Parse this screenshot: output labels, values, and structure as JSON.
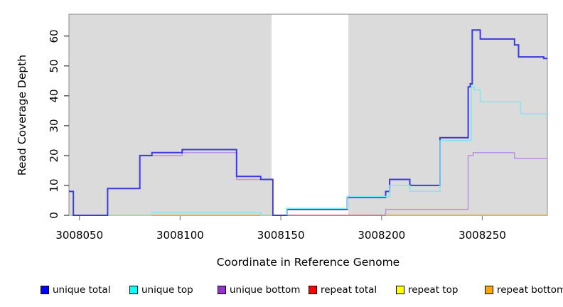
{
  "chart_data": {
    "type": "line",
    "subtype": "step-coverage-plot",
    "title": "",
    "xlabel": "Coordinate in Reference Genome",
    "ylabel": "Read Coverage Depth",
    "xlim": [
      3008044.8,
      3008282.3
    ],
    "ylim": [
      0,
      67.3
    ],
    "grid": false,
    "x_tick_values": [
      3008050,
      3008100,
      3008150,
      3008200,
      3008250
    ],
    "x_tick_labels": [
      "3008050",
      "3008100",
      "3008150",
      "3008200",
      "3008250"
    ],
    "y_tick_values": [
      0,
      10,
      20,
      30,
      40,
      50,
      60
    ],
    "y_tick_labels": [
      "0",
      "10",
      "20",
      "30",
      "40",
      "50",
      "60"
    ],
    "plot_bg_color": "#DBDBDB",
    "plot_border_color": "#9B9B9B",
    "x_tick_color": "#8a8a8a",
    "y_tick_color": "#444444",
    "highlight_region": {
      "x0": 3008145.4,
      "x1": 3008183.5,
      "color": "#FFFFFF"
    },
    "legend_position": "bottom",
    "legend": [
      {
        "label": "unique total",
        "color": "#0000FF"
      },
      {
        "label": "unique top",
        "color": "#00FFFF"
      },
      {
        "label": "unique bottom",
        "color": "#9932CC"
      },
      {
        "label": "repeat total",
        "color": "#FF0000"
      },
      {
        "label": "repeat top",
        "color": "#FFFF00"
      },
      {
        "label": "repeat bottom",
        "color": "#FFA500"
      }
    ],
    "series": [
      {
        "name": "repeat top",
        "plot_color": "#8FD98F",
        "width": 1.4,
        "parts": [
          [
            [
              3008044.8,
              0
            ],
            [
              3008150,
              0
            ]
          ]
        ]
      },
      {
        "name": "repeat total",
        "plot_color": "#D4547A",
        "width": 1.4,
        "parts": [
          [
            [
              3008146,
              0
            ],
            [
              3008202,
              0
            ]
          ]
        ]
      },
      {
        "name": "repeat bottom",
        "plot_color": "#FFA51E",
        "width": 1.7,
        "parts": [
          [
            [
              3008086,
              0
            ],
            [
              3008140,
              0
            ]
          ],
          [
            [
              3008202,
              0
            ],
            [
              3008282.3,
              0
            ]
          ]
        ]
      },
      {
        "name": "unique bottom",
        "plot_color": "#BD93DC",
        "width": 1.5,
        "parts": [
          [
            [
              3008086,
              20
            ],
            [
              3008101,
              20
            ],
            [
              3008101,
              21
            ],
            [
              3008128,
              21
            ],
            [
              3008128,
              12
            ],
            [
              3008140,
              12
            ]
          ],
          [
            [
              3008202,
              0
            ],
            [
              3008202,
              2
            ],
            [
              3008243,
              2
            ],
            [
              3008243,
              20
            ],
            [
              3008245.5,
              20
            ],
            [
              3008245.5,
              21
            ],
            [
              3008266,
              21
            ],
            [
              3008266,
              19
            ],
            [
              3008282.3,
              19
            ]
          ]
        ]
      },
      {
        "name": "unique total",
        "plot_color": "#3A3AE0",
        "width": 2,
        "parts": [
          [
            [
              3008044.8,
              8
            ],
            [
              3008047,
              8
            ],
            [
              3008047,
              0
            ],
            [
              3008064,
              0
            ],
            [
              3008064,
              9
            ],
            [
              3008080,
              9
            ],
            [
              3008080,
              20
            ],
            [
              3008086,
              20
            ],
            [
              3008086,
              21
            ],
            [
              3008101,
              21
            ],
            [
              3008101,
              22
            ],
            [
              3008128,
              22
            ],
            [
              3008128,
              13
            ],
            [
              3008140,
              13
            ],
            [
              3008140,
              12
            ],
            [
              3008146,
              12
            ],
            [
              3008146,
              0
            ],
            [
              3008153,
              0
            ],
            [
              3008153,
              2
            ],
            [
              3008183,
              2
            ],
            [
              3008183,
              6
            ],
            [
              3008202,
              6
            ],
            [
              3008202,
              8
            ],
            [
              3008204,
              8
            ],
            [
              3008204,
              12
            ],
            [
              3008214,
              12
            ],
            [
              3008214,
              10
            ],
            [
              3008229,
              10
            ],
            [
              3008229,
              26
            ],
            [
              3008243,
              26
            ],
            [
              3008243,
              43
            ],
            [
              3008244,
              43
            ],
            [
              3008244,
              44
            ],
            [
              3008245,
              44
            ],
            [
              3008245,
              62
            ],
            [
              3008249,
              62
            ],
            [
              3008249,
              59
            ],
            [
              3008266,
              59
            ],
            [
              3008266,
              57
            ],
            [
              3008268,
              57
            ],
            [
              3008268,
              53
            ],
            [
              3008280.5,
              53
            ],
            [
              3008280.5,
              52.5
            ],
            [
              3008282.3,
              52.5
            ]
          ]
        ]
      },
      {
        "name": "unique top",
        "plot_color": "#7FE7F2",
        "width": 1.5,
        "parts": [
          [
            [
              3008086,
              0
            ],
            [
              3008086,
              1
            ],
            [
              3008140,
              1
            ],
            [
              3008140,
              0
            ]
          ],
          [
            [
              3008153,
              0
            ],
            [
              3008153,
              2.3
            ],
            [
              3008183,
              2.3
            ],
            [
              3008183,
              6.3
            ],
            [
              3008204,
              6.3
            ],
            [
              3008204,
              10
            ],
            [
              3008214,
              10
            ],
            [
              3008214,
              8
            ],
            [
              3008229,
              8
            ],
            [
              3008229,
              25
            ],
            [
              3008244.5,
              25
            ],
            [
              3008244.5,
              43
            ],
            [
              3008246,
              43
            ],
            [
              3008246,
              42
            ],
            [
              3008249,
              42
            ],
            [
              3008249,
              38
            ],
            [
              3008269,
              38
            ],
            [
              3008269,
              34
            ],
            [
              3008282.3,
              34
            ]
          ]
        ]
      }
    ]
  }
}
